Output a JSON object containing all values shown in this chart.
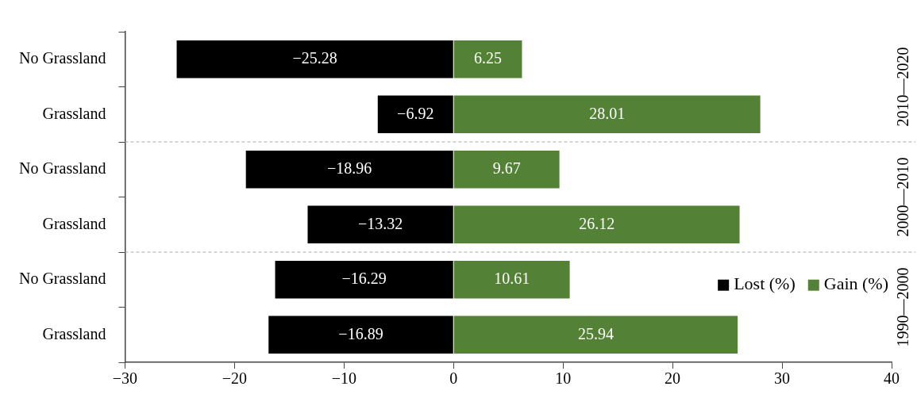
{
  "chart_data": {
    "type": "bar",
    "orientation": "horizontal",
    "stacked": true,
    "categories": [
      "No Grassland",
      "Grassland",
      "No Grassland",
      "Grassland",
      "No Grassland",
      "Grassland"
    ],
    "series": [
      {
        "name": "Lost (%)",
        "color": "#000000",
        "values": [
          -25.28,
          -6.92,
          -18.96,
          -13.32,
          -16.29,
          -16.89
        ]
      },
      {
        "name": "Gain (%)",
        "color": "#538135",
        "values": [
          6.25,
          28.01,
          9.67,
          26.12,
          10.61,
          25.94
        ]
      }
    ],
    "xlim": [
      -30,
      40
    ],
    "xticks": [
      -30,
      -20,
      -10,
      0,
      10,
      20,
      30,
      40
    ],
    "annotations": [
      "2010—2020",
      "2000—2010",
      "1990—2000"
    ],
    "data_labels": true,
    "legend": "bottom right",
    "grid": false
  }
}
